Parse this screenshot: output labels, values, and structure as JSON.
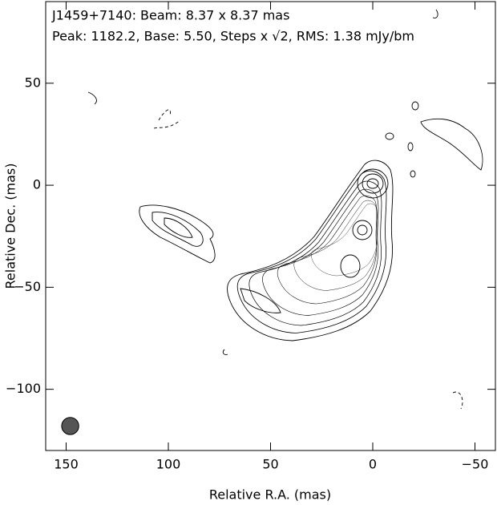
{
  "chart_data": {
    "type": "contour",
    "title": "J1459+7140: Beam: 8.37 x 8.37 mas",
    "subtitle": "Peak: 1182.2, Base: 5.50, Steps x √2, RMS: 1.38 mJy/bm",
    "x_label": "Relative R.A. (mas)",
    "y_label": "Relative Dec. (mas)",
    "xlim": [
      160,
      -60
    ],
    "ylim": [
      -130,
      90
    ],
    "xticks": [
      150,
      100,
      50,
      0,
      {
        "value": -50,
        "label": "−50"
      }
    ],
    "yticks": [
      50,
      0,
      {
        "value": -50,
        "label": "−50"
      },
      {
        "value": -100,
        "label": "−100"
      }
    ],
    "beam": {
      "x": 148,
      "y": -118,
      "diameter": 8.37,
      "color": "#555555"
    }
  }
}
